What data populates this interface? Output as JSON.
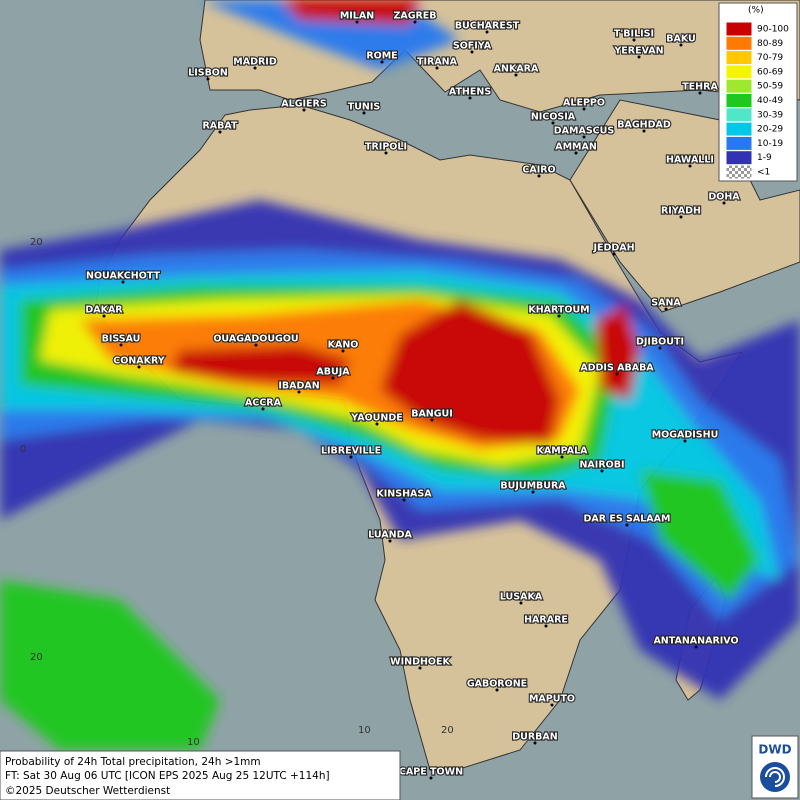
{
  "legend": {
    "title": "(%)",
    "items": [
      {
        "label": "90-100",
        "color": "#c80000"
      },
      {
        "label": "80-89",
        "color": "#ff7a00"
      },
      {
        "label": "70-79",
        "color": "#ffc800"
      },
      {
        "label": "60-69",
        "color": "#f5f500"
      },
      {
        "label": "50-59",
        "color": "#9ee830"
      },
      {
        "label": "40-49",
        "color": "#1ec81e"
      },
      {
        "label": "30-39",
        "color": "#50e6c8"
      },
      {
        "label": "20-29",
        "color": "#00c8e6"
      },
      {
        "label": "10-19",
        "color": "#2878f0"
      },
      {
        "label": "1-9",
        "color": "#3232b4"
      },
      {
        "label": "<1",
        "color": "#b0b0b0"
      }
    ]
  },
  "cities": [
    "MILAN",
    "ZAGREB",
    "BUCHAREST",
    "SOFIYA",
    "MADRID",
    "ROME",
    "TIRANA",
    "ANKARA",
    "T'BILISI",
    "YEREVAN",
    "BAKU",
    "LISBON",
    "ATHENS",
    "TEHRA",
    "ALGIERS",
    "TUNIS",
    "ALEPPO",
    "RABAT",
    "NICOSIA",
    "BAGHDAD",
    "DAMASCUS",
    "TRIPOLI",
    "AMMAN",
    "HAWALLI",
    "CAIRO",
    "DOHA",
    "RIYADH",
    "JEDDAH",
    "NOUAKCHOTT",
    "SANA",
    "KHARTOUM",
    "DAKAR",
    "DJIBOUTI",
    "BISSAU",
    "OUAGADOUGOU",
    "KANO",
    "CONAKRY",
    "ADDIS ABABA",
    "ABUJA",
    "IBADAN",
    "ACCRA",
    "YAOUNDE",
    "BANGUI",
    "MOGADISHU",
    "KAMPALA",
    "LIBREVILLE",
    "NAIROBI",
    "BUJUMBURA",
    "KINSHASA",
    "DAR ES SALAAM",
    "LUANDA",
    "LUSAKA",
    "HARARE",
    "ANTANANARIVO",
    "WINDHOEK",
    "GABORONE",
    "MAPUTO",
    "DURBAN",
    "CAPE TOWN"
  ],
  "grid_labels": [
    "20",
    "0",
    "20",
    "10",
    "10",
    "20"
  ],
  "footer": {
    "line1": "Probability of 24h Total precipitation, 24h >1mm",
    "line2": "FT: Sat 30 Aug 06 UTC [ICON EPS 2025 Aug 25 12UTC +114h]",
    "line3": "©2025 Deutscher Wetterdienst"
  },
  "logo": "DWD"
}
